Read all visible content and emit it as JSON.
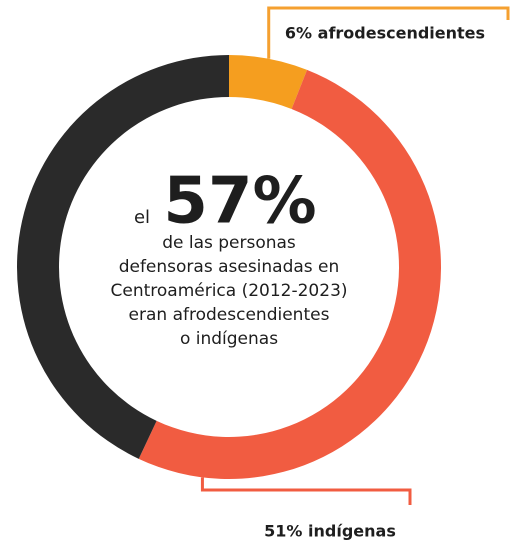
{
  "chart_data": {
    "type": "donut",
    "values": [
      6,
      51,
      43
    ],
    "value_labels": [
      "6% afrodescendientes",
      "51% indígenas",
      null
    ],
    "colors": [
      "#f59e1f",
      "#f15c41",
      "#2a2a2a"
    ],
    "center_prefix": "el",
    "highlight": {
      "value": 57,
      "label": "57%"
    },
    "center_text": [
      "de las personas",
      "defensoras asesinadas en",
      "Centroamérica (2012-2023)",
      "eran afrodescendientes",
      "o indígenas"
    ]
  }
}
